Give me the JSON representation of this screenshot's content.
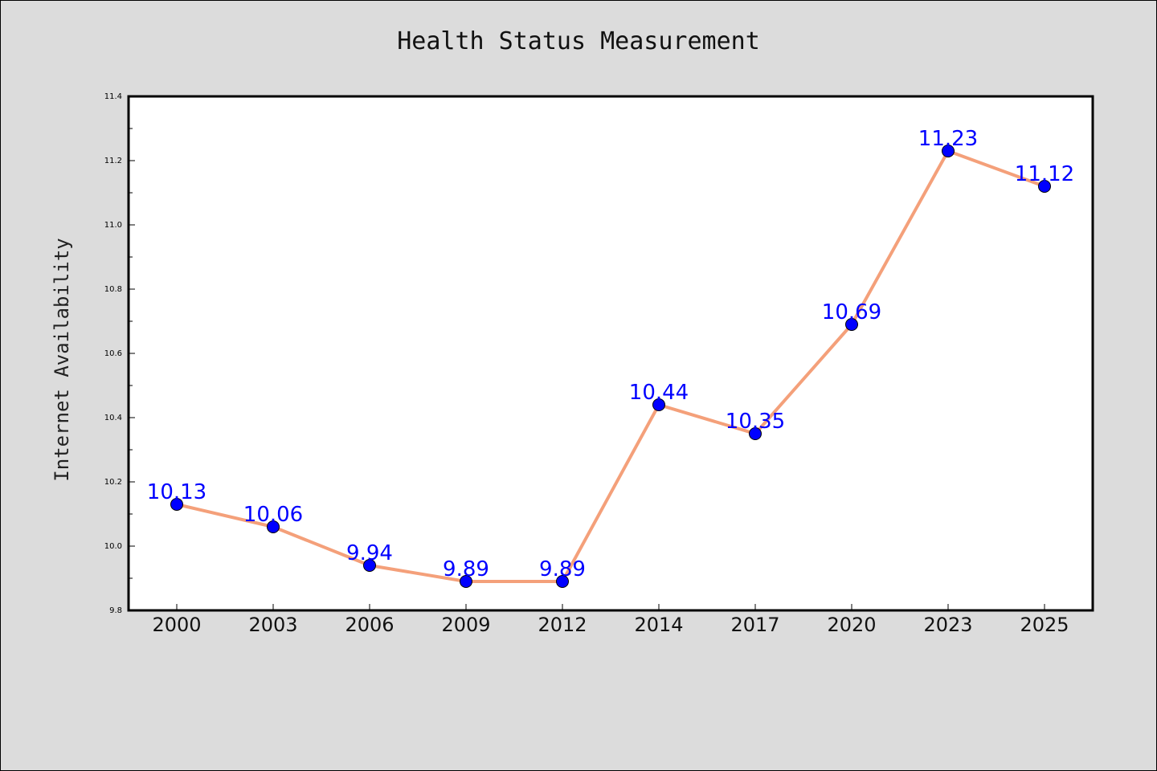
{
  "chart_data": {
    "type": "line",
    "title": "Health Status Measurement",
    "xlabel": "",
    "ylabel": "Internet Availability",
    "categories": [
      "2000",
      "2003",
      "2006",
      "2009",
      "2012",
      "2014",
      "2017",
      "2020",
      "2023",
      "2025"
    ],
    "series": [
      {
        "values": [
          10.13,
          10.06,
          9.94,
          9.89,
          9.89,
          10.44,
          10.35,
          10.69,
          11.23,
          11.12
        ]
      }
    ],
    "data_labels": [
      "10.13",
      "10.06",
      "9.94",
      "9.89",
      "9.89",
      "10.44",
      "10.35",
      "10.69",
      "11.23",
      "11.12"
    ],
    "ylim": [
      9.8,
      11.4
    ],
    "y_ticks": [
      "9.8",
      "10.0",
      "10.2",
      "10.4",
      "10.6",
      "10.8",
      "11.0",
      "11.2",
      "11.4"
    ],
    "grid": false,
    "legend": "none",
    "colors": {
      "line": "#f4a07a",
      "marker": "#0000ff",
      "label": "#0000ff",
      "plot_bg": "#ffffff",
      "figure_bg": "#dcdcdc"
    }
  }
}
